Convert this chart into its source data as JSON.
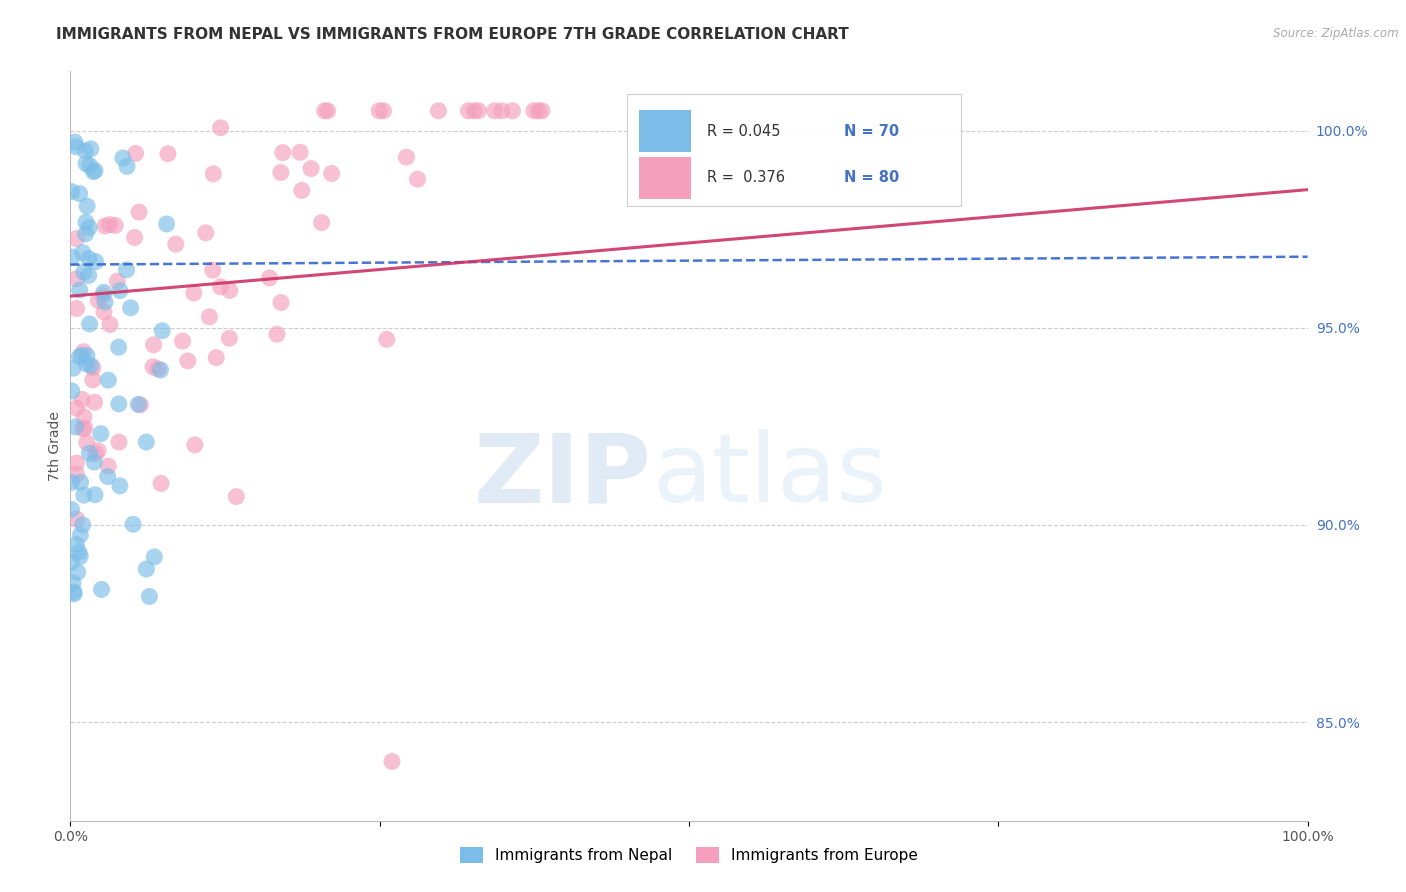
{
  "title": "IMMIGRANTS FROM NEPAL VS IMMIGRANTS FROM EUROPE 7TH GRADE CORRELATION CHART",
  "source": "Source: ZipAtlas.com",
  "legend_label1": "Immigrants from Nepal",
  "legend_label2": "Immigrants from Europe",
  "ylabel": "7th Grade",
  "r1": 0.045,
  "n1": 70,
  "r2": 0.376,
  "n2": 80,
  "color_nepal": "#7bbde8",
  "color_europe": "#f4a0bc",
  "color_nepal_line": "#3366cc",
  "color_europe_line": "#cc3366",
  "ytick_labels": [
    "85.0%",
    "90.0%",
    "95.0%",
    "100.0%"
  ],
  "ytick_values": [
    0.85,
    0.9,
    0.95,
    1.0
  ],
  "watermark_zip": "ZIP",
  "watermark_atlas": "atlas",
  "xlim": [
    0.0,
    1.0
  ],
  "ylim": [
    0.825,
    1.015
  ]
}
